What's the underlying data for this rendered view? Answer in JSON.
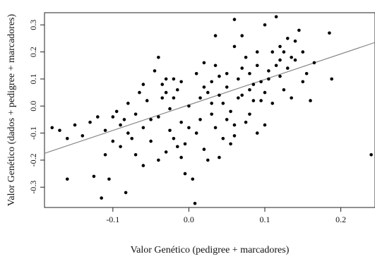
{
  "chart_data": {
    "type": "scatter",
    "xlabel": "Valor Genético (pedigree + marcadores)",
    "ylabel": "Valor Genético (dados + pedigree + marcadores)",
    "xlim": [
      -0.19,
      0.245
    ],
    "ylim": [
      -0.375,
      0.345
    ],
    "xticks": [
      "-0.1",
      "0.0",
      "0.1",
      "0.2"
    ],
    "yticks": [
      "-0.3",
      "-0.2",
      "-0.1",
      "0.0",
      "0.1",
      "0.2",
      "0.3"
    ],
    "grid": false,
    "point_color": "#000000",
    "line_color": "#888888",
    "regression_line": {
      "x": [
        -0.19,
        0.245
      ],
      "y": [
        -0.175,
        0.235
      ]
    },
    "points": [
      [
        -0.17,
        -0.09
      ],
      [
        -0.16,
        -0.12
      ],
      [
        -0.15,
        -0.07
      ],
      [
        -0.14,
        -0.11
      ],
      [
        -0.18,
        -0.08
      ],
      [
        -0.16,
        -0.27
      ],
      [
        -0.125,
        -0.26
      ],
      [
        -0.115,
        -0.34
      ],
      [
        -0.105,
        -0.27
      ],
      [
        -0.083,
        -0.32
      ],
      [
        -0.13,
        -0.06
      ],
      [
        -0.12,
        -0.04
      ],
      [
        -0.11,
        -0.09
      ],
      [
        -0.1,
        -0.13
      ],
      [
        -0.095,
        -0.02
      ],
      [
        -0.09,
        -0.15
      ],
      [
        -0.085,
        -0.05
      ],
      [
        -0.08,
        -0.1
      ],
      [
        -0.075,
        -0.12
      ],
      [
        -0.07,
        -0.03
      ],
      [
        -0.065,
        0.05
      ],
      [
        -0.06,
        -0.08
      ],
      [
        -0.055,
        0.02
      ],
      [
        -0.05,
        -0.05
      ],
      [
        -0.045,
        0.13
      ],
      [
        -0.04,
        0.18
      ],
      [
        -0.035,
        0.08
      ],
      [
        -0.03,
        0.1
      ],
      [
        -0.025,
        -0.01
      ],
      [
        -0.02,
        0.03
      ],
      [
        -0.015,
        -0.15
      ],
      [
        -0.01,
        -0.19
      ],
      [
        -0.005,
        -0.25
      ],
      [
        0.0,
        0.0
      ],
      [
        0.005,
        -0.27
      ],
      [
        0.008,
        -0.36
      ],
      [
        0.01,
        0.12
      ],
      [
        0.015,
        -0.05
      ],
      [
        0.02,
        0.07
      ],
      [
        0.025,
        -0.2
      ],
      [
        0.03,
        0.09
      ],
      [
        0.035,
        0.15
      ],
      [
        0.04,
        0.04
      ],
      [
        0.045,
        -0.12
      ],
      [
        0.05,
        0.12
      ],
      [
        0.055,
        -0.02
      ],
      [
        0.06,
        0.22
      ],
      [
        0.065,
        0.1
      ],
      [
        0.07,
        0.26
      ],
      [
        0.075,
        0.18
      ],
      [
        0.08,
        0.06
      ],
      [
        0.085,
        0.02
      ],
      [
        0.09,
        0.15
      ],
      [
        0.095,
        0.09
      ],
      [
        0.1,
        0.3
      ],
      [
        0.105,
        0.13
      ],
      [
        0.11,
        0.2
      ],
      [
        0.115,
        0.33
      ],
      [
        0.12,
        0.11
      ],
      [
        0.125,
        0.06
      ],
      [
        0.13,
        0.25
      ],
      [
        0.135,
        0.03
      ],
      [
        0.14,
        0.24
      ],
      [
        0.145,
        0.28
      ],
      [
        0.15,
        0.2
      ],
      [
        0.155,
        0.12
      ],
      [
        0.16,
        0.02
      ],
      [
        0.165,
        0.16
      ],
      [
        0.185,
        0.27
      ],
      [
        0.188,
        0.1
      ],
      [
        0.24,
        -0.18
      ],
      [
        -0.06,
        -0.22
      ],
      [
        -0.04,
        -0.2
      ],
      [
        -0.02,
        -0.12
      ],
      [
        0.0,
        -0.08
      ],
      [
        0.02,
        -0.16
      ],
      [
        0.04,
        -0.19
      ],
      [
        0.06,
        -0.07
      ],
      [
        0.08,
        -0.03
      ],
      [
        0.1,
        0.05
      ],
      [
        0.12,
        0.17
      ],
      [
        -0.03,
        0.05
      ],
      [
        -0.01,
        0.09
      ],
      [
        0.03,
        0.01
      ],
      [
        0.05,
        -0.05
      ],
      [
        0.07,
        0.04
      ],
      [
        0.09,
        -0.1
      ],
      [
        0.11,
        0.01
      ],
      [
        0.13,
        0.14
      ],
      [
        -0.07,
        -0.18
      ],
      [
        -0.05,
        -0.13
      ],
      [
        -0.03,
        -0.17
      ],
      [
        -0.01,
        -0.06
      ],
      [
        0.01,
        -0.1
      ],
      [
        0.03,
        -0.03
      ],
      [
        0.05,
        0.07
      ],
      [
        0.07,
        0.14
      ],
      [
        0.09,
        0.2
      ],
      [
        -0.08,
        0.01
      ],
      [
        -0.06,
        0.08
      ],
      [
        -0.04,
        -0.04
      ],
      [
        -0.02,
        0.1
      ],
      [
        0.02,
        0.16
      ],
      [
        0.04,
        0.11
      ],
      [
        0.06,
        -0.11
      ],
      [
        0.08,
        0.12
      ],
      [
        0.1,
        -0.07
      ],
      [
        0.12,
        0.22
      ],
      [
        0.14,
        0.17
      ],
      [
        0.15,
        0.09
      ],
      [
        -0.09,
        -0.07
      ],
      [
        -0.11,
        -0.18
      ],
      [
        -0.1,
        -0.04
      ],
      [
        -0.035,
        0.03
      ],
      [
        -0.015,
        0.06
      ],
      [
        0.015,
        0.03
      ],
      [
        0.025,
        0.05
      ],
      [
        0.045,
        0.01
      ],
      [
        0.065,
        0.03
      ],
      [
        0.085,
        0.08
      ],
      [
        0.105,
        0.1
      ],
      [
        0.125,
        0.2
      ],
      [
        -0.025,
        -0.09
      ],
      [
        -0.005,
        -0.14
      ],
      [
        0.035,
        -0.08
      ],
      [
        0.055,
        -0.14
      ],
      [
        0.075,
        -0.06
      ],
      [
        0.095,
        0.02
      ],
      [
        0.115,
        0.15
      ],
      [
        0.135,
        0.18
      ],
      [
        0.035,
        0.26
      ],
      [
        0.06,
        0.32
      ]
    ]
  }
}
